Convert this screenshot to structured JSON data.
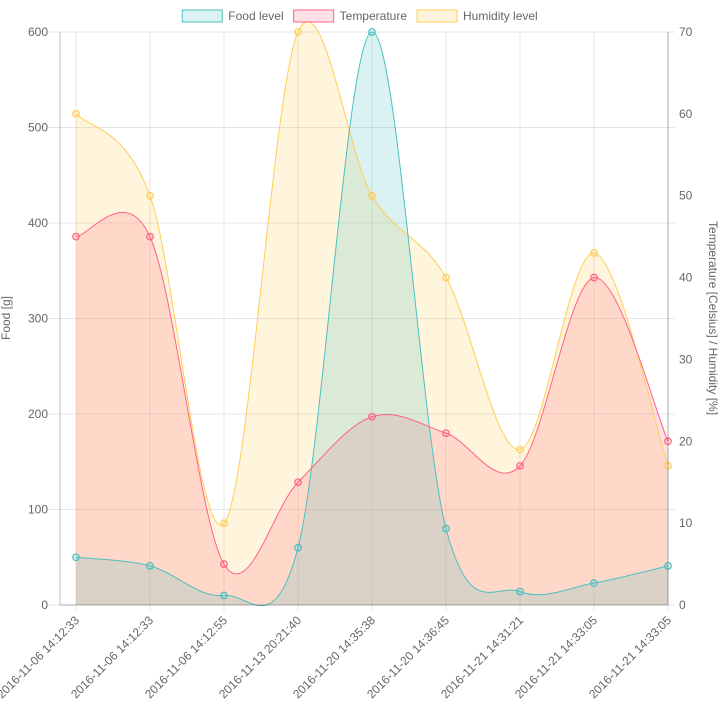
{
  "chart_data": {
    "type": "area",
    "categories": [
      "2016-11-06 14:12:33",
      "2016-11-06 14:12:33",
      "2016-11-06 14:12:55",
      "2016-11-13 20:21:40",
      "2016-11-20 14:35:38",
      "2016-11-20 14:36:45",
      "2016-11-21 14:31:21",
      "2016-11-21 14:33:05",
      "2016-11-21 14:33:05"
    ],
    "series": [
      {
        "name": "Food level",
        "axis": "left",
        "values": [
          50,
          41,
          10,
          60,
          600,
          80,
          14,
          23,
          41
        ],
        "border_color": "#4bc0c0",
        "fill_color": "rgba(75,192,192,0.2)"
      },
      {
        "name": "Temperature",
        "axis": "right",
        "values": [
          45,
          45,
          5,
          15,
          23,
          21,
          17,
          40,
          20
        ],
        "border_color": "#ff6384",
        "fill_color": "rgba(255,99,132,0.2)"
      },
      {
        "name": "Humidity level",
        "axis": "right",
        "values": [
          60,
          50,
          10,
          70,
          50,
          40,
          19,
          43,
          17
        ],
        "border_color": "#ffcd56",
        "fill_color": "rgba(255,205,86,0.2)"
      }
    ],
    "y_left": {
      "label": "Food [g]",
      "range": [
        0,
        600
      ],
      "ticks": [
        0,
        100,
        200,
        300,
        400,
        500,
        600
      ]
    },
    "y_right": {
      "label": "Temperature [Celsius] / Humidity [%]",
      "range": [
        0,
        70
      ],
      "ticks": [
        0,
        10,
        20,
        30,
        40,
        50,
        60,
        70
      ]
    },
    "grid": true,
    "legend_position": "top"
  }
}
